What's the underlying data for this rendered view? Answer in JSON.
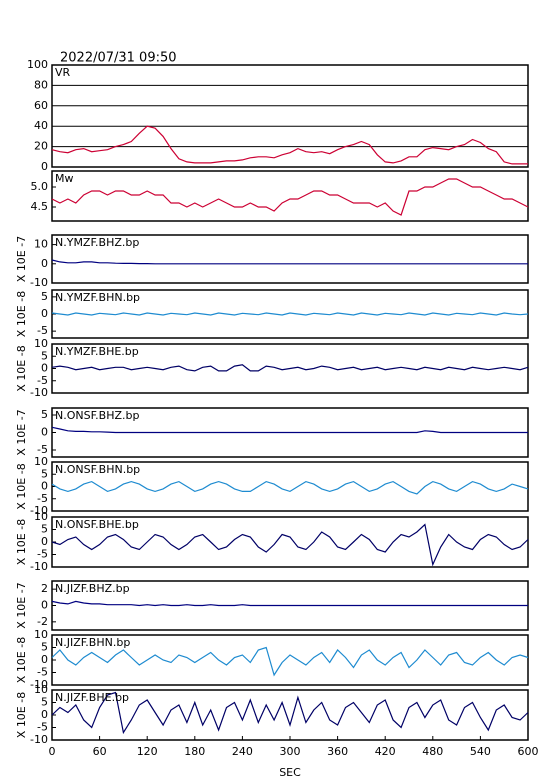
{
  "chart_data": {
    "type": "line",
    "title": "2022/07/31 09:50",
    "xlabel": "SEC",
    "x": [
      0,
      10,
      20,
      30,
      40,
      50,
      60,
      70,
      80,
      90,
      100,
      110,
      120,
      130,
      140,
      150,
      160,
      170,
      180,
      190,
      200,
      210,
      220,
      230,
      240,
      250,
      260,
      270,
      280,
      290,
      300,
      310,
      320,
      330,
      340,
      350,
      360,
      370,
      380,
      390,
      400,
      410,
      420,
      430,
      440,
      450,
      460,
      470,
      480,
      490,
      500,
      510,
      520,
      530,
      540,
      550,
      560,
      570,
      580,
      590,
      600
    ],
    "xlim": [
      0,
      600
    ],
    "xticks": [
      0,
      60,
      120,
      180,
      240,
      300,
      360,
      420,
      480,
      540,
      600
    ],
    "panels": [
      {
        "label": "VR",
        "color": "#cc0033",
        "grid": true,
        "ylim": [
          0,
          100
        ],
        "yticks": [
          0,
          20,
          40,
          60,
          80,
          100
        ],
        "values": [
          17,
          15,
          14,
          17,
          18,
          15,
          16,
          17,
          20,
          22,
          25,
          33,
          40,
          38,
          30,
          18,
          8,
          5,
          4,
          4,
          4,
          5,
          6,
          6,
          7,
          9,
          10,
          10,
          9,
          12,
          14,
          18,
          15,
          14,
          15,
          13,
          17,
          20,
          22,
          25,
          22,
          12,
          5,
          4,
          6,
          10,
          10,
          17,
          19,
          18,
          17,
          20,
          22,
          27,
          24,
          18,
          15,
          5,
          3,
          3,
          3
        ]
      },
      {
        "label": "Mw",
        "color": "#cc0033",
        "grid": false,
        "ylim": [
          4.15,
          5.4
        ],
        "yticks": [
          4.5,
          {
            "value": 5,
            "label": "5.0"
          }
        ],
        "values": [
          4.7,
          4.6,
          4.7,
          4.6,
          4.8,
          4.9,
          4.9,
          4.8,
          4.9,
          4.9,
          4.8,
          4.8,
          4.9,
          4.8,
          4.8,
          4.6,
          4.6,
          4.5,
          4.6,
          4.5,
          4.6,
          4.7,
          4.6,
          4.5,
          4.5,
          4.6,
          4.5,
          4.5,
          4.4,
          4.6,
          4.7,
          4.7,
          4.8,
          4.9,
          4.9,
          4.8,
          4.8,
          4.7,
          4.6,
          4.6,
          4.6,
          4.5,
          4.6,
          4.4,
          4.3,
          4.9,
          4.9,
          5.0,
          5.0,
          5.1,
          5.2,
          5.2,
          5.1,
          5.0,
          5.0,
          4.9,
          4.8,
          4.7,
          4.7,
          4.6,
          4.5
        ]
      },
      {
        "label": "N.YMZF.BHZ.bp",
        "ylabel": "X 10E -7",
        "color": "#000080",
        "grid": false,
        "ylim": [
          -10,
          15
        ],
        "yticks": [
          -10,
          0,
          10
        ],
        "values": [
          2,
          1,
          0.5,
          0.5,
          1,
          1,
          0.5,
          0.5,
          0.3,
          0.2,
          0.2,
          0.1,
          0.1,
          0,
          0,
          0,
          0,
          0,
          0,
          0,
          0,
          0,
          0,
          0,
          0,
          0,
          0,
          0,
          0,
          0,
          0,
          0,
          0,
          0,
          0,
          0,
          0,
          0,
          0,
          0,
          0,
          0,
          0,
          0,
          0,
          0,
          0,
          0,
          0,
          0,
          0,
          0,
          0,
          0,
          0,
          0,
          0,
          0,
          0,
          0,
          0
        ]
      },
      {
        "label": "N.YMZF.BHN.bp",
        "ylabel": "X 10E -8",
        "color": "#1e8bd0",
        "grid": false,
        "ylim": [
          -7,
          7
        ],
        "yticks": [
          -5,
          0,
          5
        ],
        "values": [
          0.3,
          0,
          -0.3,
          0.3,
          0,
          -0.3,
          0.2,
          0,
          -0.2,
          0.3,
          0,
          -0.3,
          0.3,
          0,
          -0.3,
          0.2,
          0,
          -0.2,
          0.3,
          0,
          -0.3,
          0.3,
          0,
          -0.3,
          0.2,
          0,
          -0.2,
          0.3,
          0,
          -0.3,
          0.3,
          0,
          -0.3,
          0.2,
          0,
          -0.2,
          0.3,
          0,
          -0.3,
          0.3,
          0,
          -0.3,
          0.2,
          0,
          -0.2,
          0.3,
          0,
          -0.3,
          0.3,
          0,
          -0.3,
          0.2,
          0,
          -0.2,
          0.3,
          0,
          -0.3,
          0.3,
          0,
          -0.2,
          0
        ]
      },
      {
        "label": "N.YMZF.BHE.bp",
        "ylabel": "X 10E -8",
        "color": "#000066",
        "grid": false,
        "ylim": [
          -10,
          10
        ],
        "yticks": [
          -10,
          -5,
          0,
          5,
          10
        ],
        "values": [
          0.5,
          1,
          0.5,
          -0.5,
          0,
          0.5,
          -0.5,
          0,
          0.5,
          0.5,
          -0.5,
          0,
          0.5,
          0,
          -0.5,
          0.5,
          1,
          -0.5,
          -1,
          0.5,
          1,
          -1,
          -1,
          1,
          1.5,
          -1,
          -1,
          1,
          0.5,
          -0.5,
          0,
          0.5,
          -0.5,
          0,
          1,
          0.5,
          -0.5,
          0,
          0.5,
          -0.5,
          0,
          0.5,
          -0.5,
          0,
          0.5,
          0,
          -0.5,
          0.5,
          0,
          -0.5,
          0.5,
          0,
          -0.5,
          0.5,
          0,
          -0.5,
          0,
          0.5,
          0,
          -0.5,
          0.5
        ]
      },
      {
        "label": "N.ONSF.BHZ.bp",
        "ylabel": "X 10E -7",
        "color": "#000080",
        "grid": false,
        "ylim": [
          -7,
          7
        ],
        "yticks": [
          -5,
          0,
          5
        ],
        "values": [
          1.5,
          1,
          0.5,
          0.3,
          0.3,
          0.2,
          0.2,
          0.1,
          0,
          0,
          0,
          0,
          0,
          0,
          0,
          0,
          0,
          0,
          0,
          0,
          0,
          0,
          0,
          0,
          0,
          0,
          0,
          0,
          0,
          0,
          0,
          0,
          0,
          0,
          0,
          0,
          0,
          0,
          0,
          0,
          0,
          0,
          0,
          0,
          0,
          0,
          0,
          0.5,
          0.3,
          0,
          0,
          0,
          0,
          0,
          0,
          0,
          0,
          0,
          0,
          0,
          0
        ]
      },
      {
        "label": "N.ONSF.BHN.bp",
        "ylabel": "X 10E -8",
        "color": "#1e8bd0",
        "grid": false,
        "ylim": [
          -10,
          10
        ],
        "yticks": [
          -10,
          -5,
          0,
          5,
          10
        ],
        "values": [
          1,
          -1,
          -2,
          -1,
          1,
          2,
          0,
          -2,
          -1,
          1,
          2,
          1,
          -1,
          -2,
          -1,
          1,
          2,
          0,
          -2,
          -1,
          1,
          2,
          1,
          -1,
          -2,
          -2,
          0,
          2,
          1,
          -1,
          -2,
          0,
          2,
          1,
          -1,
          -2,
          -1,
          1,
          2,
          0,
          -2,
          -1,
          1,
          2,
          0,
          -2,
          -3,
          0,
          2,
          1,
          -1,
          -2,
          0,
          2,
          1,
          -1,
          -2,
          -1,
          1,
          0,
          -1
        ]
      },
      {
        "label": "N.ONSF.BHE.bp",
        "ylabel": "X 10E -8",
        "color": "#000066",
        "grid": false,
        "ylim": [
          -10,
          10
        ],
        "yticks": [
          -10,
          -5,
          0,
          5,
          10
        ],
        "values": [
          0,
          -1,
          1,
          2,
          -1,
          -3,
          -1,
          2,
          3,
          1,
          -2,
          -3,
          0,
          3,
          2,
          -1,
          -3,
          -1,
          2,
          3,
          0,
          -3,
          -2,
          1,
          3,
          2,
          -2,
          -4,
          -1,
          3,
          2,
          -2,
          -3,
          0,
          4,
          2,
          -2,
          -3,
          0,
          3,
          1,
          -3,
          -4,
          0,
          3,
          2,
          4,
          7,
          -9,
          -2,
          3,
          0,
          -2,
          -3,
          1,
          3,
          2,
          -1,
          -3,
          -2,
          1
        ]
      },
      {
        "label": "N.JIZF.BHZ.bp",
        "ylabel": "X 10E -7",
        "color": "#000080",
        "grid": false,
        "ylim": [
          -3,
          3
        ],
        "yticks": [
          -2,
          0,
          2
        ],
        "values": [
          0.5,
          0.3,
          0.2,
          0.5,
          0.3,
          0.2,
          0.2,
          0.1,
          0.1,
          0.1,
          0.1,
          0,
          0.1,
          0,
          0.1,
          0,
          0,
          0.1,
          0,
          0,
          0.1,
          0,
          0,
          0,
          0.1,
          0,
          0,
          0,
          0,
          0,
          0,
          0,
          0,
          0,
          0,
          0,
          0,
          0,
          0,
          0,
          0,
          0,
          0,
          0,
          0,
          0,
          0,
          0,
          0,
          0,
          0,
          0,
          0,
          0,
          0,
          0,
          0,
          0,
          0,
          0,
          0
        ]
      },
      {
        "label": "N.JIZF.BHN.bp",
        "ylabel": "X 10E -8",
        "color": "#1e8bd0",
        "grid": false,
        "ylim": [
          -10,
          10
        ],
        "yticks": [
          -10,
          -5,
          0,
          5,
          10
        ],
        "values": [
          1,
          4,
          0,
          -2,
          1,
          3,
          1,
          -1,
          2,
          4,
          1,
          -2,
          0,
          2,
          0,
          -1,
          2,
          1,
          -1,
          1,
          3,
          0,
          -2,
          1,
          2,
          -1,
          4,
          5,
          -6,
          -1,
          2,
          0,
          -2,
          1,
          3,
          -1,
          4,
          1,
          -3,
          2,
          4,
          0,
          -2,
          1,
          3,
          -3,
          0,
          4,
          1,
          -2,
          2,
          3,
          -1,
          -2,
          1,
          3,
          0,
          -2,
          1,
          2,
          1
        ]
      },
      {
        "label": "N.JIZF.BHE.bp",
        "ylabel": "X 10E -8",
        "color": "#000066",
        "grid": false,
        "ylim": [
          -10,
          10
        ],
        "yticks": [
          -10,
          -5,
          0,
          5,
          10
        ],
        "values": [
          0,
          3,
          1,
          4,
          -2,
          -5,
          3,
          8,
          9,
          -7,
          -2,
          4,
          6,
          1,
          -4,
          2,
          4,
          -3,
          5,
          -4,
          2,
          -6,
          3,
          5,
          -2,
          6,
          -3,
          4,
          -2,
          5,
          -4,
          7,
          -3,
          2,
          5,
          -2,
          -4,
          3,
          5,
          1,
          -3,
          4,
          6,
          -2,
          -5,
          3,
          5,
          -1,
          4,
          6,
          -2,
          -4,
          3,
          5,
          -1,
          -6,
          2,
          4,
          -1,
          -2,
          1
        ]
      }
    ]
  }
}
